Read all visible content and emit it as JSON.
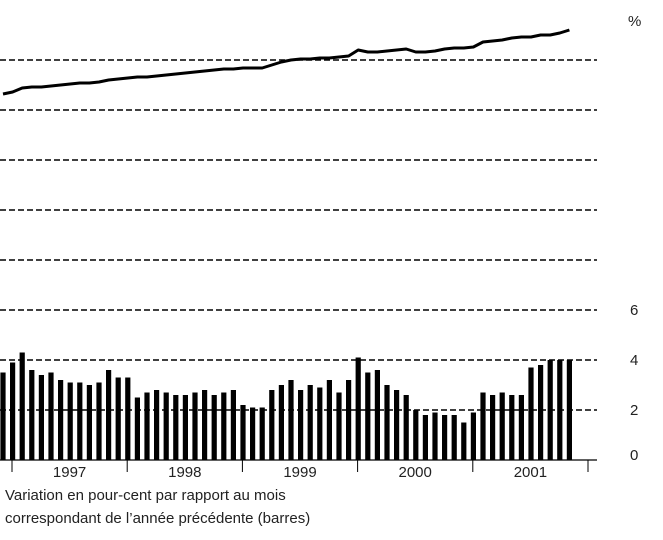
{
  "chart_data": {
    "type": "bar_line",
    "unit_label": "%",
    "caption": [
      "Variation en pour-cent par rapport au mois",
      "correspondant de l’année précédente (barres)"
    ],
    "year_labels": [
      "1997",
      "1998",
      "1999",
      "2000",
      "2001"
    ],
    "categories": [
      null,
      null,
      null,
      null,
      null,
      null,
      null,
      null,
      null,
      null,
      null,
      null,
      null,
      null,
      null,
      null,
      null,
      null,
      null,
      null,
      null,
      null,
      null,
      null,
      null,
      null,
      null,
      null,
      null,
      null,
      null,
      null,
      null,
      null,
      null,
      null,
      null,
      null,
      null,
      null,
      null,
      null,
      null,
      null,
      null,
      null,
      null,
      null,
      null,
      null,
      null,
      null,
      null,
      null,
      null,
      null,
      null,
      null,
      null,
      null
    ],
    "ylim": [
      0,
      18
    ],
    "yticks": [
      0,
      2,
      4,
      6
    ],
    "grid_lines": [
      2,
      4,
      6,
      8,
      10,
      12,
      14,
      16
    ],
    "series": [
      {
        "name": null,
        "kind": "bar",
        "color": "#000000",
        "values": [
          3.5,
          3.9,
          4.3,
          3.6,
          3.4,
          3.5,
          3.2,
          3.1,
          3.1,
          3.0,
          3.1,
          3.6,
          3.3,
          3.3,
          2.5,
          2.7,
          2.8,
          2.7,
          2.6,
          2.6,
          2.7,
          2.8,
          2.6,
          2.7,
          2.8,
          2.2,
          2.1,
          2.1,
          2.8,
          3.0,
          3.2,
          2.8,
          3.0,
          2.9,
          3.2,
          2.7,
          3.2,
          4.1,
          3.5,
          3.6,
          3.0,
          2.8,
          2.6,
          2.0,
          1.8,
          1.9,
          1.8,
          1.8,
          1.5,
          1.9,
          2.7,
          2.6,
          2.7,
          2.6,
          2.6,
          3.7,
          3.8,
          4.0,
          4.0,
          4.0
        ]
      },
      {
        "name": null,
        "kind": "line",
        "color": "#000000",
        "values": [
          14.64,
          14.72,
          14.88,
          14.92,
          14.92,
          14.96,
          15.0,
          15.04,
          15.08,
          15.08,
          15.12,
          15.2,
          15.24,
          15.28,
          15.32,
          15.32,
          15.36,
          15.4,
          15.44,
          15.48,
          15.52,
          15.56,
          15.6,
          15.64,
          15.64,
          15.68,
          15.68,
          15.68,
          15.8,
          15.92,
          16.0,
          16.04,
          16.04,
          16.08,
          16.08,
          16.12,
          16.16,
          16.4,
          16.32,
          16.32,
          16.36,
          16.4,
          16.44,
          16.32,
          16.32,
          16.36,
          16.44,
          16.48,
          16.48,
          16.52,
          16.72,
          16.76,
          16.8,
          16.88,
          16.92,
          16.92,
          17.0,
          17.0,
          17.08,
          17.2
        ]
      }
    ]
  }
}
